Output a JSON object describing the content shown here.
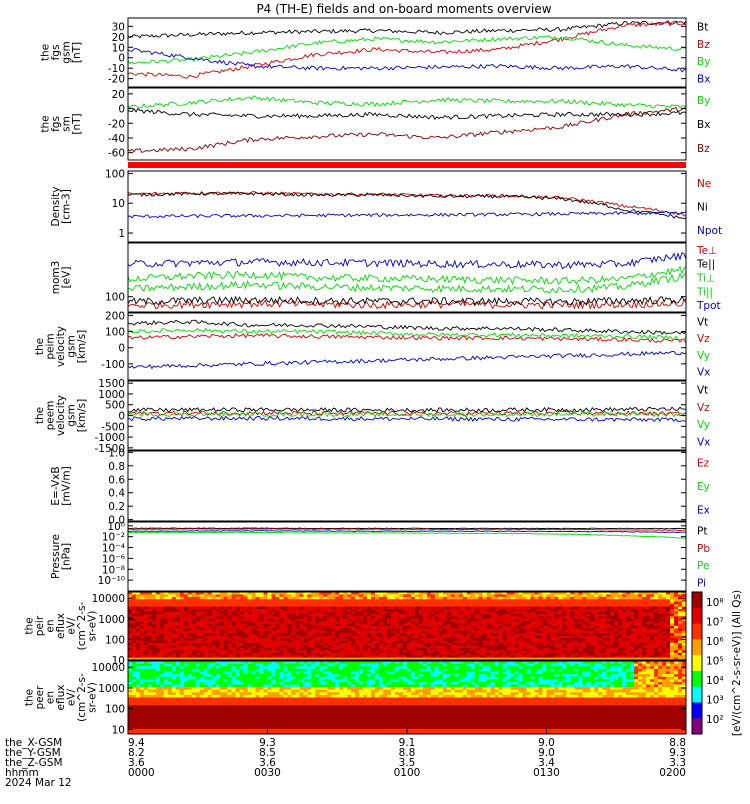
{
  "title": "P4 (TH-E) fields and on-board moments overview",
  "chart_data": {
    "type": "line",
    "time_axis": {
      "ticks": [
        "0000",
        "0030",
        "0100",
        "0130",
        "0200"
      ],
      "rows": [
        {
          "label": "the_X-GSM",
          "values": [
            "9.4",
            "9.3",
            "9.1",
            "9.0",
            "8.8"
          ]
        },
        {
          "label": "the_Y-GSM",
          "values": [
            "8.2",
            "8.5",
            "8.8",
            "9.0",
            "9.3"
          ]
        },
        {
          "label": "the_Z-GSM",
          "values": [
            "3.6",
            "3.6",
            "3.5",
            "3.4",
            "3.3"
          ]
        },
        {
          "label": "hhmm",
          "values": []
        }
      ],
      "date": "2024 Mar 12"
    },
    "panels": [
      {
        "id": "fgs_gsm",
        "ylabel": [
          "the",
          "fgs",
          "gsm",
          "[nT]"
        ],
        "scale": "linear",
        "ylim": [
          -28,
          38
        ],
        "ticks": [
          -20,
          -10,
          0,
          10,
          20,
          30
        ],
        "tick_labels": [
          "-20",
          "-10",
          "0",
          "10",
          "20",
          "30"
        ],
        "series": [
          {
            "name": "Bt",
            "color": "#000000",
            "values": [
              20,
              22,
              24,
              25,
              26,
              24,
              26,
              27,
              33,
              34
            ]
          },
          {
            "name": "Bz",
            "color": "#d00000",
            "values": [
              -15,
              -18,
              -8,
              3,
              8,
              5,
              8,
              18,
              31,
              33
            ]
          },
          {
            "name": "By",
            "color": "#00dd00",
            "values": [
              -5,
              -2,
              5,
              14,
              18,
              15,
              18,
              20,
              12,
              8
            ]
          },
          {
            "name": "Bx",
            "color": "#0000cc",
            "values": [
              8,
              0,
              -8,
              -10,
              -10,
              -9,
              -8,
              -10,
              -8,
              -12
            ]
          }
        ]
      },
      {
        "id": "fgs_sm",
        "ylabel": [
          "the",
          "fgs",
          "sm",
          "[nT]"
        ],
        "scale": "linear",
        "ylim": [
          -70,
          28
        ],
        "ticks": [
          -60,
          -40,
          -20,
          0,
          20
        ],
        "tick_labels": [
          "-60",
          "-40",
          "-20",
          "0",
          "20"
        ],
        "series": [
          {
            "name": "By",
            "color": "#00dd00",
            "values": [
              2,
              8,
              15,
              8,
              6,
              12,
              10,
              10,
              5,
              2
            ]
          },
          {
            "name": "Bx",
            "color": "#000000",
            "values": [
              -2,
              -8,
              -10,
              -10,
              -8,
              -12,
              -10,
              -8,
              -8,
              -6
            ]
          },
          {
            "name": "Bz",
            "color": "#800000",
            "values": [
              -58,
              -55,
              -42,
              -38,
              -35,
              -40,
              -32,
              -25,
              -8,
              0
            ]
          }
        ]
      },
      {
        "id": "density",
        "ylabel": [
          "Density",
          "[cm-3]"
        ],
        "scale": "log",
        "ylim": [
          0.5,
          120
        ],
        "ticks": [
          1,
          10,
          100
        ],
        "tick_labels": [
          "1",
          "10",
          "100"
        ],
        "series": [
          {
            "name": "Ne",
            "color": "#d00000",
            "values": [
              20,
              22,
              22,
              20,
              20,
              18,
              18,
              15,
              8,
              4
            ]
          },
          {
            "name": "Ni",
            "color": "#000000",
            "values": [
              19,
              21,
              21,
              19,
              19,
              17,
              17,
              14,
              6,
              3
            ]
          },
          {
            "name": "Npot",
            "color": "#0000cc",
            "values": [
              3.6,
              3.7,
              3.8,
              3.9,
              4.0,
              4.1,
              4.2,
              4.4,
              4.6,
              4.8
            ]
          }
        ]
      },
      {
        "id": "temperature",
        "ylabel": [
          "mom3",
          "[eV]"
        ],
        "scale": "log",
        "ylim": [
          60,
          600
        ],
        "ticks": [
          100
        ],
        "tick_labels": [
          "100"
        ],
        "series": [
          {
            "name": "Te⊥",
            "color": "#d00000",
            "values": [
              75,
              78,
              80,
              78,
              76,
              78,
              77,
              76,
              78,
              80
            ]
          },
          {
            "name": "Te||",
            "color": "#000000",
            "values": [
              85,
              88,
              90,
              88,
              86,
              87,
              86,
              85,
              88,
              90
            ]
          },
          {
            "name": "Ti⊥",
            "color": "#00dd00",
            "values": [
              180,
              200,
              210,
              190,
              185,
              180,
              175,
              170,
              180,
              250
            ]
          },
          {
            "name": "Ti||",
            "color": "#00dd00",
            "values": [
              130,
              140,
              150,
              140,
              135,
              132,
              130,
              128,
              140,
              200
            ]
          },
          {
            "name": "Tpot",
            "color": "#0000cc",
            "values": [
              300,
              310,
              320,
              315,
              310,
              300,
              295,
              290,
              300,
              400
            ]
          }
        ]
      },
      {
        "id": "peim_velocity",
        "ylabel": [
          "the",
          "peim",
          "velocity",
          "gsm",
          "[km/s]"
        ],
        "scale": "linear",
        "ylim": [
          -200,
          215
        ],
        "ticks": [
          -100,
          0,
          100,
          200
        ],
        "tick_labels": [
          "-100",
          "0",
          "100",
          "200"
        ],
        "series": [
          {
            "name": "Vt",
            "color": "#000000",
            "values": [
              150,
              160,
              140,
              140,
              130,
              120,
              120,
              110,
              100,
              90
            ]
          },
          {
            "name": "Vz",
            "color": "#d00000",
            "values": [
              60,
              70,
              75,
              70,
              65,
              60,
              60,
              55,
              50,
              40
            ]
          },
          {
            "name": "Vy",
            "color": "#00dd00",
            "values": [
              100,
              110,
              100,
              100,
              90,
              80,
              80,
              75,
              70,
              60
            ]
          },
          {
            "name": "Vx",
            "color": "#0000cc",
            "values": [
              -120,
              -110,
              -100,
              -90,
              -80,
              -70,
              -60,
              -50,
              -40,
              -30
            ]
          }
        ]
      },
      {
        "id": "peem_velocity",
        "ylabel": [
          "the",
          "peem",
          "velocity",
          "gsm",
          "[km/s]"
        ],
        "scale": "linear",
        "ylim": [
          -1600,
          1600
        ],
        "ticks": [
          -1500,
          -1000,
          -500,
          0,
          500,
          1000,
          1500
        ],
        "tick_labels": [
          "-1500",
          "-1000",
          "-500",
          "0",
          "500",
          "1000",
          "1500"
        ],
        "series": [
          {
            "name": "Vt",
            "color": "#000000",
            "values": [
              250,
              260,
              270,
              260,
              250,
              250,
              260,
              270,
              280,
              300
            ]
          },
          {
            "name": "Vz",
            "color": "#d00000",
            "values": [
              100,
              110,
              120,
              100,
              100,
              90,
              100,
              110,
              100,
              80
            ]
          },
          {
            "name": "Vy",
            "color": "#00dd00",
            "values": [
              50,
              60,
              50,
              50,
              40,
              40,
              50,
              60,
              50,
              40
            ]
          },
          {
            "name": "Vx",
            "color": "#0000cc",
            "values": [
              -150,
              -140,
              -130,
              -140,
              -150,
              -160,
              -170,
              -180,
              -190,
              -200
            ]
          }
        ]
      },
      {
        "id": "efield",
        "ylabel": [
          "E=-VxB",
          "[mV/m]"
        ],
        "scale": "linear",
        "ylim": [
          -0.02,
          1.02
        ],
        "ticks": [
          0.0,
          0.2,
          0.4,
          0.6,
          0.8,
          1.0
        ],
        "tick_labels": [
          "0.0",
          "0.2",
          "0.4",
          "0.6",
          "0.8",
          "1.0"
        ],
        "series": [
          {
            "name": "Ez",
            "color": "#d00000",
            "values": []
          },
          {
            "name": "Ey",
            "color": "#00dd00",
            "values": []
          },
          {
            "name": "Ex",
            "color": "#0000cc",
            "values": []
          }
        ]
      },
      {
        "id": "pressure",
        "ylabel": [
          "Pressure",
          "[nPa]"
        ],
        "scale": "log",
        "ylim": [
          1e-12,
          5
        ],
        "ticks": [
          1e-10,
          1e-08,
          1e-06,
          0.0001,
          0.01,
          1
        ],
        "tick_labels": [
          "10⁻¹⁰",
          "10⁻⁸",
          "10⁻⁶",
          "10⁻⁴",
          "10⁻²",
          "10⁰"
        ],
        "series": [
          {
            "name": "Pt",
            "color": "#000000",
            "values": [
              0.35,
              0.36,
              0.37,
              0.35,
              0.34,
              0.33,
              0.33,
              0.32,
              0.32,
              0.3
            ]
          },
          {
            "name": "Pb",
            "color": "#d00000",
            "values": [
              0.25,
              0.26,
              0.26,
              0.25,
              0.24,
              0.23,
              0.22,
              0.2,
              0.18,
              0.15
            ]
          },
          {
            "name": "Pe",
            "color": "#00dd00",
            "values": [
              0.06,
              0.06,
              0.06,
              0.05,
              0.05,
              0.045,
              0.04,
              0.03,
              0.015,
              0.005
            ]
          },
          {
            "name": "Pi",
            "color": "#0000cc",
            "values": [
              0.1,
              0.11,
              0.12,
              0.11,
              0.1,
              0.1,
              0.1,
              0.09,
              0.08,
              0.06
            ]
          }
        ]
      },
      {
        "id": "peir_spec",
        "type": "heatmap",
        "ylabel": [
          "the",
          "peir",
          "en",
          "eflux",
          "eV/",
          "(cm^2-s-",
          "sr-eV)"
        ],
        "scale": "log",
        "ylim": [
          10,
          20000
        ],
        "ticks": [
          10,
          100,
          1000,
          10000
        ],
        "tick_labels": [
          "10",
          "100",
          "1000",
          "10000"
        ]
      },
      {
        "id": "peer_spec",
        "type": "heatmap",
        "ylabel": [
          "the",
          "peer",
          "en",
          "eflux",
          "eV/",
          "(cm^2-s-",
          "sr-eV)"
        ],
        "scale": "log",
        "ylim": [
          6,
          20000
        ],
        "ticks": [
          10,
          100,
          1000,
          10000
        ],
        "tick_labels": [
          "10",
          "100",
          "1000",
          "10000"
        ]
      }
    ],
    "colorbar": {
      "label": "[eV/(cm^2-s-sr-eV)] (All Qs)",
      "tick_labels": [
        "10⁸",
        "10⁷",
        "10⁶",
        "10⁵",
        "10⁴",
        "10³",
        "10²"
      ]
    }
  }
}
